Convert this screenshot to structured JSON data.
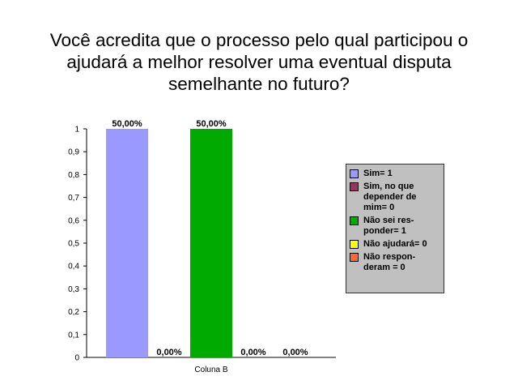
{
  "title_lines": [
    "Você acredita que o processo pelo qual participou o",
    "ajudará a melhor resolver uma eventual disputa",
    "semelhante no futuro?"
  ],
  "chart_data": {
    "type": "bar",
    "title": "Você acredita que o processo pelo qual participou o ajudará a melhor resolver uma eventual disputa semelhante no futuro?",
    "categories": [
      "Coluna B"
    ],
    "ylim": [
      0,
      1
    ],
    "yticks": [
      "0",
      "0,1",
      "0,2",
      "0,3",
      "0,4",
      "0,5",
      "0,6",
      "0,7",
      "0,8",
      "0,9",
      "1"
    ],
    "grid": false,
    "legend_position": "right",
    "series": [
      {
        "name": "Sim= 1",
        "values": [
          1
        ],
        "color": "#9999ff",
        "label": "50,00%"
      },
      {
        "name": "Sim, no que depender de mim= 0",
        "values": [
          0
        ],
        "color": "#993366",
        "label": "0,00%"
      },
      {
        "name": "Não sei res-ponder= 1",
        "values": [
          1
        ],
        "color": "#00aa00",
        "label": "50,00%"
      },
      {
        "name": "Não ajudará= 0",
        "values": [
          0
        ],
        "color": "#ffff00",
        "label": "0,00%"
      },
      {
        "name": "Não respon-deram = 0",
        "values": [
          0
        ],
        "color": "#ff6633",
        "label": "0,00%"
      }
    ]
  },
  "legend": [
    {
      "lines": [
        "Sim= 1"
      ],
      "color": "#9999ff",
      "icon": "swatch"
    },
    {
      "lines": [
        "Sim, no que",
        "depender de",
        "mim= 0"
      ],
      "color": "#993366",
      "icon": "swatch"
    },
    {
      "lines": [
        "Não sei res-",
        "ponder= 1"
      ],
      "color": "#00aa00",
      "icon": "swatch"
    },
    {
      "lines": [
        "Não ajudará= 0"
      ],
      "color": "#ffff00",
      "icon": "swatch"
    },
    {
      "lines": [
        "Não respon-",
        "deram = 0"
      ],
      "color": "#ff6633",
      "icon": "swatch"
    }
  ]
}
